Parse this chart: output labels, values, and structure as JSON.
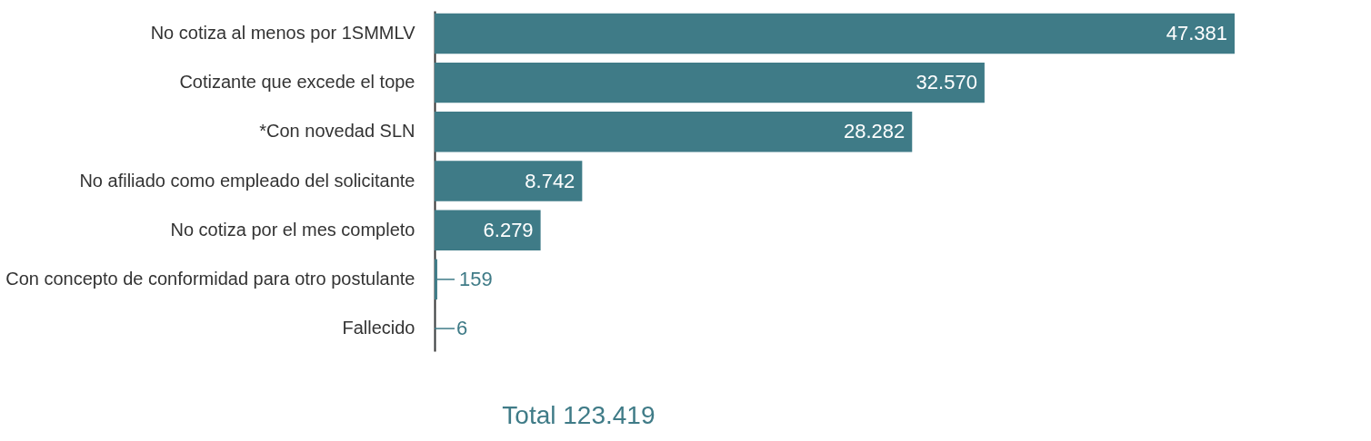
{
  "chart_data": {
    "type": "bar",
    "orientation": "horizontal",
    "categories": [
      "No cotiza al menos por 1SMMLV",
      "Cotizante que excede el tope",
      "*Con novedad SLN",
      "No afiliado como empleado del solicitante",
      "No cotiza por el mes completo",
      "Con concepto de conformidad para otro postulante",
      "Fallecido"
    ],
    "values": [
      47381,
      32570,
      28282,
      8742,
      6279,
      159,
      6
    ],
    "value_labels": [
      "47.381",
      "32.570",
      "28.282",
      "8.742",
      "6.279",
      "159",
      "6"
    ],
    "color": "#3f7b87",
    "grid": false,
    "annotations": [
      "Total 123.419"
    ]
  }
}
